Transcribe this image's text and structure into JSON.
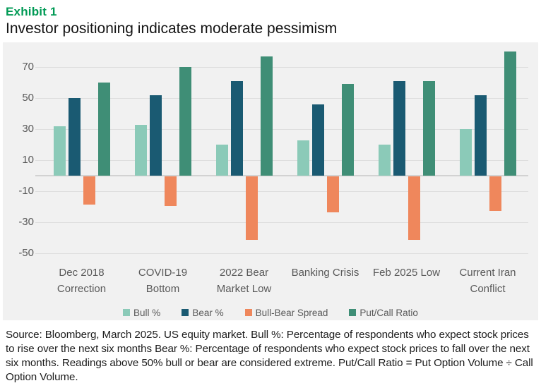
{
  "header": {
    "exhibit_label": "Exhibit 1",
    "title": "Investor positioning indicates moderate pessimism"
  },
  "chart_data": {
    "type": "bar",
    "categories": [
      "Dec 2018 Correction",
      "COVID-19 Bottom",
      "2022 Bear Market Low",
      "Banking Crisis",
      "Feb 2025 Low",
      "Current Iran Conflict"
    ],
    "category_lines": [
      [
        "Dec 2018",
        "Correction"
      ],
      [
        "COVID-19",
        "Bottom"
      ],
      [
        "2022 Bear",
        "Market Low"
      ],
      [
        "Banking Crisis"
      ],
      [
        "Feb 2025 Low"
      ],
      [
        "Current Iran",
        "Conflict"
      ]
    ],
    "series": [
      {
        "name": "Bull %",
        "color": "#8bcab8",
        "values": [
          32,
          33,
          20,
          23,
          20,
          30
        ]
      },
      {
        "name": "Bear %",
        "color": "#1a5a72",
        "values": [
          50,
          52,
          61,
          46,
          61,
          52
        ]
      },
      {
        "name": "Bull-Bear Spread",
        "color": "#ef875c",
        "values": [
          -18,
          -19,
          -41,
          -23,
          -41,
          -22
        ]
      },
      {
        "name": "Put/Call Ratio",
        "color": "#3f8e76",
        "values": [
          60,
          70,
          77,
          59,
          61,
          80
        ]
      }
    ],
    "yticks": [
      70,
      50,
      30,
      10,
      -10,
      -30,
      -50
    ],
    "ylim": [
      -54,
      86
    ],
    "grid": true,
    "legend_position": "bottom",
    "xlabel": "",
    "ylabel": ""
  },
  "footer": {
    "source_text": "Source: Bloomberg, March 2025. US equity market. Bull %: Percentage of respondents who expect stock prices to rise over the next six months Bear %: Percentage of respondents who expect stock prices to fall over the next six months. Readings above 50% bull or bear are considered extreme. Put/Call Ratio = Put Option Volume ÷ Call Option Volume."
  },
  "colors": {
    "accent_green": "#009a55",
    "panel_bg": "#f1f1f1",
    "gridline": "#dedede",
    "zero_line": "#d2d2d2",
    "axis_text": "#595959",
    "body_text": "#1c1c1c"
  }
}
